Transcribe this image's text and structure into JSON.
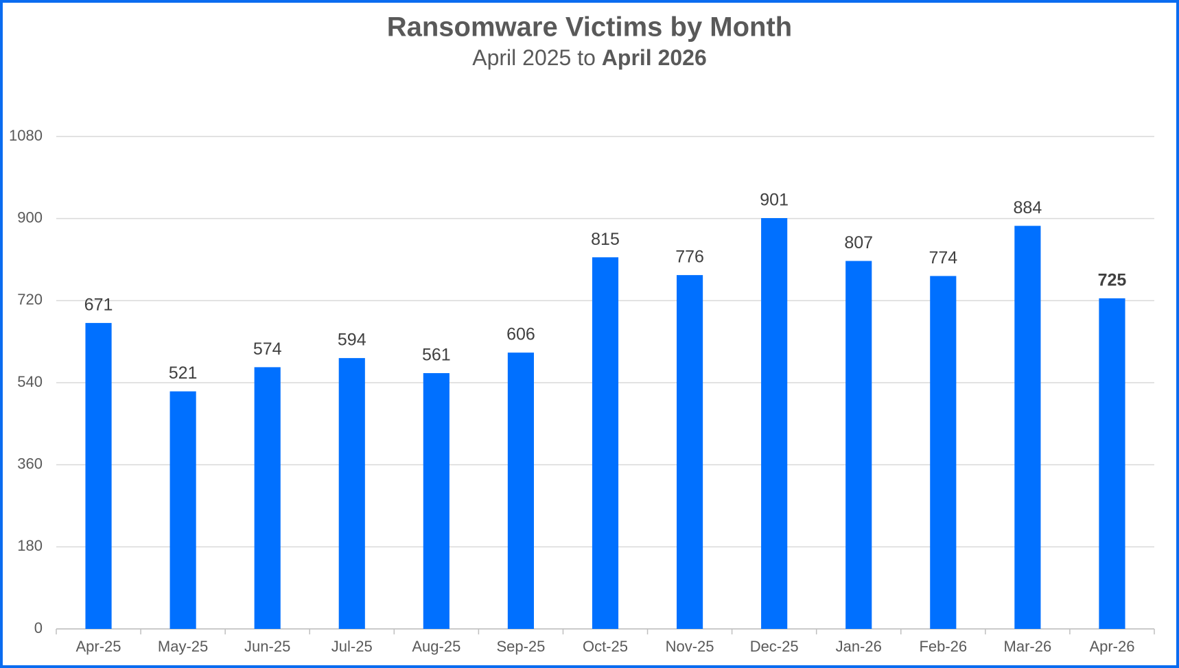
{
  "chart_data": {
    "type": "bar",
    "title": "Ransomware Victims by Month",
    "subtitle_prefix": "April 2025 to",
    "subtitle_bold": "April 2026",
    "categories": [
      "Apr-25",
      "May-25",
      "Jun-25",
      "Jul-25",
      "Aug-25",
      "Sep-25",
      "Oct-25",
      "Nov-25",
      "Dec-25",
      "Jan-26",
      "Feb-26",
      "Mar-26",
      "Apr-26"
    ],
    "values": [
      671,
      521,
      574,
      594,
      561,
      606,
      815,
      776,
      901,
      807,
      774,
      884,
      725
    ],
    "bold_value_labels": [
      false,
      false,
      false,
      false,
      false,
      false,
      false,
      false,
      false,
      false,
      false,
      false,
      true
    ],
    "color": "#0070ff",
    "ylim": [
      0,
      1080
    ],
    "yticks": [
      0,
      180,
      360,
      540,
      720,
      900,
      1080
    ],
    "grid": true
  }
}
